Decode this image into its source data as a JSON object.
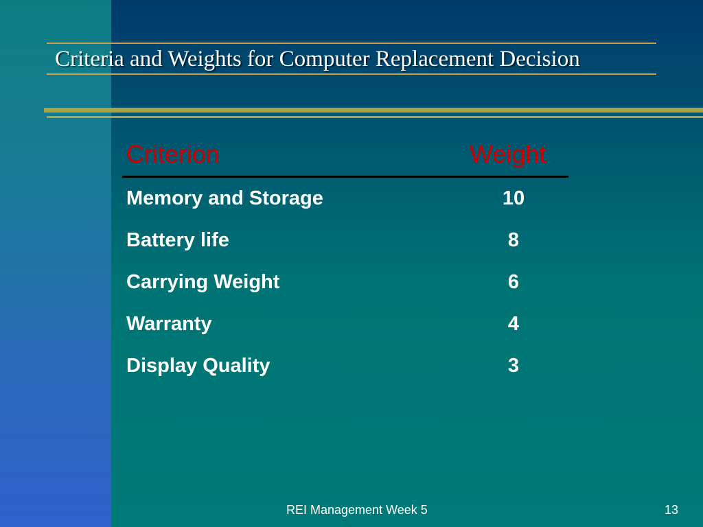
{
  "slide": {
    "title": "Criteria and Weights for Computer Replacement Decision",
    "colors": {
      "title_line": "#c9a24e",
      "rule": "#a7a44a",
      "header_text": "#cc0000",
      "body_text": "#ffffff"
    }
  },
  "table": {
    "headers": {
      "criterion": "Criterion",
      "weight": "Weight"
    },
    "rows": [
      {
        "criterion": "Memory and Storage",
        "weight": "10"
      },
      {
        "criterion": "Battery life",
        "weight": "8"
      },
      {
        "criterion": "Carrying Weight",
        "weight": "6"
      },
      {
        "criterion": "Warranty",
        "weight": "4"
      },
      {
        "criterion": "Display Quality",
        "weight": "3"
      }
    ]
  },
  "footer": {
    "text": "REI Management Week 5",
    "page_number": "13"
  }
}
